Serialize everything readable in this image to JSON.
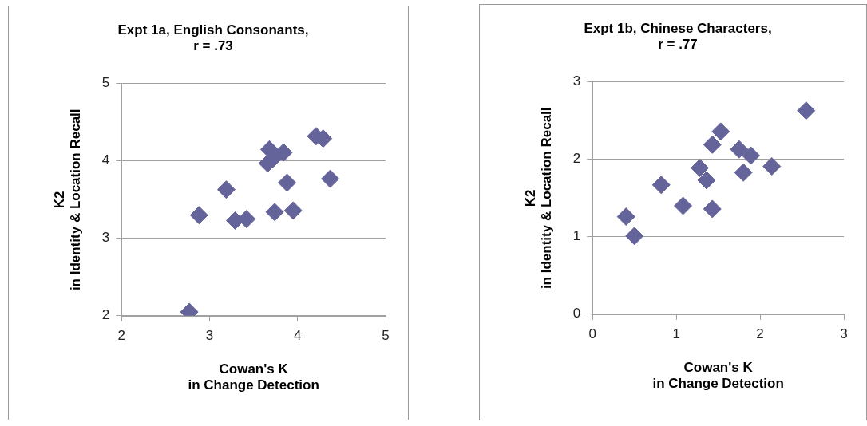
{
  "chart_data": [
    {
      "type": "scatter",
      "title": "Expt 1a, English Consonants,\nr = .73",
      "xlabel": "Cowan's K\nin Change Detection",
      "ylabel": "K2\nin Identity & Location Recall",
      "color": "#64649a",
      "marker": "diamond",
      "grid": "y",
      "x": [
        2.77,
        2.88,
        3.19,
        3.29,
        3.42,
        3.74,
        3.95,
        3.88,
        3.66,
        3.68,
        3.72,
        3.84,
        4.21,
        4.29,
        4.37
      ],
      "values": [
        2.05,
        3.3,
        3.63,
        3.23,
        3.25,
        3.34,
        3.36,
        3.72,
        3.97,
        4.15,
        4.03,
        4.11,
        4.32,
        4.29,
        3.77
      ],
      "xlim": [
        2,
        5
      ],
      "xticks": [
        2,
        3,
        4,
        5
      ],
      "ylim": [
        2,
        5
      ],
      "yticks": [
        2,
        3,
        4,
        5
      ]
    },
    {
      "type": "scatter",
      "title": "Expt 1b, Chinese Characters,\nr = .77",
      "xlabel": "Cowan's K\nin Change Detection",
      "ylabel": "K2\nin Identity & Location Recall",
      "color": "#64649a",
      "marker": "diamond",
      "grid": "y",
      "x": [
        0.4,
        0.5,
        0.82,
        1.08,
        1.28,
        1.36,
        1.43,
        1.43,
        1.53,
        1.75,
        1.89,
        1.8,
        2.14,
        2.55
      ],
      "values": [
        1.26,
        1.01,
        1.67,
        1.4,
        1.89,
        1.73,
        1.36,
        2.19,
        2.36,
        2.13,
        2.05,
        1.83,
        1.91,
        2.63
      ],
      "xlim": [
        0,
        3
      ],
      "xticks": [
        0,
        1,
        2,
        3
      ],
      "ylim": [
        0,
        3
      ],
      "yticks": [
        0,
        1,
        2,
        3
      ]
    }
  ]
}
